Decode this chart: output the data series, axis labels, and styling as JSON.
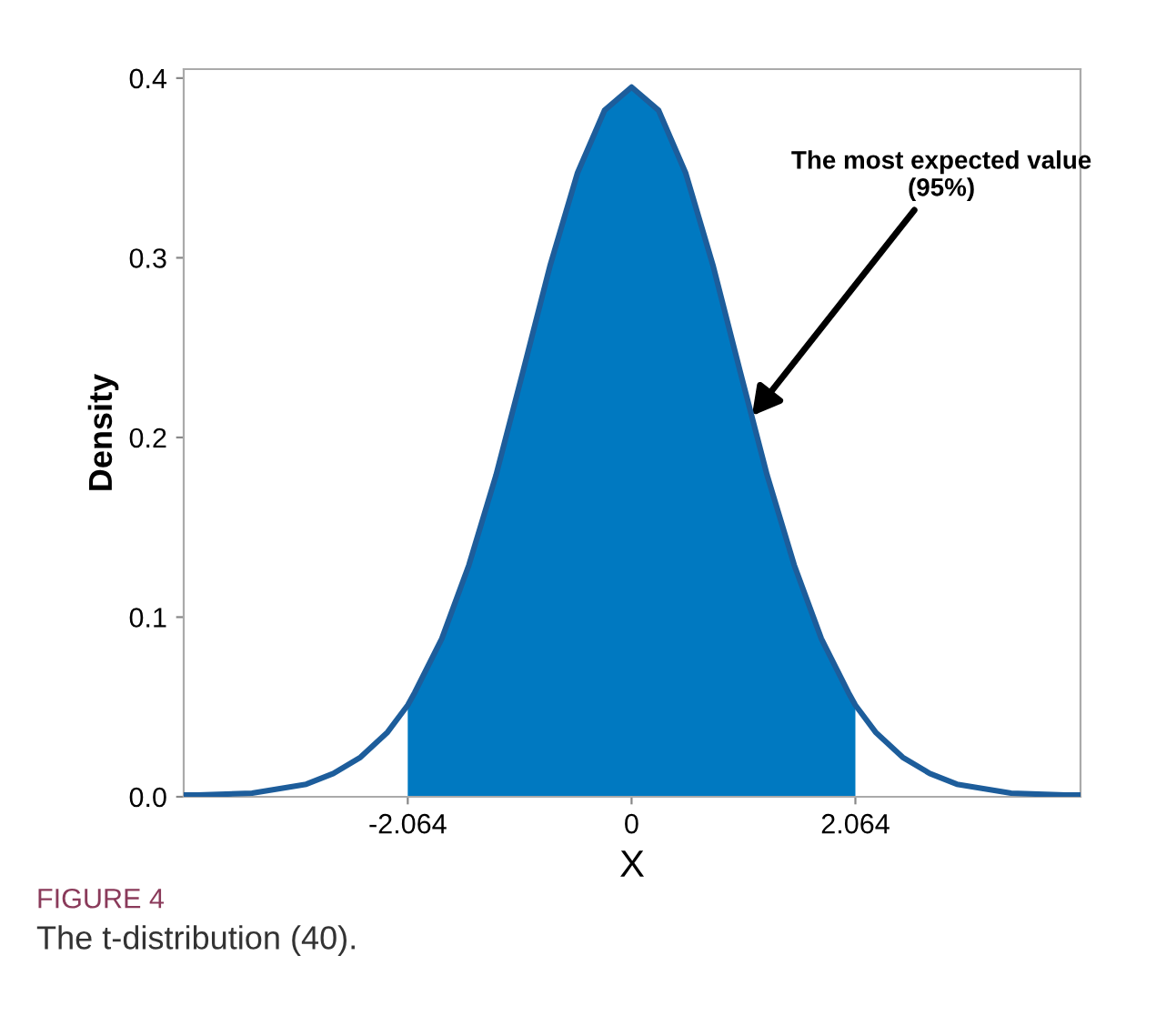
{
  "chart_data": {
    "type": "line",
    "xlabel": "X",
    "ylabel": "Density",
    "xlim": [
      -4.13,
      4.14
    ],
    "ylim": [
      0,
      0.405
    ],
    "xticks": [
      -2.064,
      0,
      2.064
    ],
    "yticks": [
      {
        "value": 0,
        "label": "0.0"
      },
      0.1,
      0.2,
      0.3,
      0.4
    ],
    "grid": false,
    "legend": false,
    "marker": "none",
    "line_style": "solid",
    "series": [
      {
        "type": "area",
        "color": "#0079c1",
        "x": [
          -2.064,
          -2.0,
          -1.75,
          -1.5,
          -1.25,
          -1.0,
          -0.75,
          -0.5,
          -0.25,
          0,
          0.25,
          0.5,
          0.75,
          1.0,
          1.25,
          1.5,
          1.75,
          2.0,
          2.064
        ],
        "values": [
          0.051,
          0.058,
          0.088,
          0.129,
          0.179,
          0.237,
          0.296,
          0.347,
          0.382,
          0.395,
          0.382,
          0.347,
          0.296,
          0.237,
          0.179,
          0.129,
          0.088,
          0.058,
          0.051
        ]
      },
      {
        "color": "#1d5d9b",
        "x": [
          -4.13,
          -4.0,
          -3.5,
          -3.0,
          -2.75,
          -2.5,
          -2.25,
          -2.064,
          -2.0,
          -1.75,
          -1.5,
          -1.25,
          -1.0,
          -0.75,
          -0.5,
          -0.25,
          0,
          0.25,
          0.5,
          0.75,
          1.0,
          1.25,
          1.5,
          1.75,
          2.0,
          2.064,
          2.25,
          2.5,
          2.75,
          3.0,
          3.5,
          4.0,
          4.14
        ],
        "values": [
          0.001,
          0.001,
          0.002,
          0.007,
          0.013,
          0.022,
          0.036,
          0.051,
          0.058,
          0.088,
          0.129,
          0.179,
          0.237,
          0.296,
          0.347,
          0.382,
          0.395,
          0.382,
          0.347,
          0.296,
          0.237,
          0.179,
          0.129,
          0.088,
          0.058,
          0.051,
          0.036,
          0.022,
          0.013,
          0.007,
          0.002,
          0.001,
          0.001
        ]
      }
    ],
    "annotations": [
      {
        "text": "The most expected value\n(95%)",
        "x": 1.11,
        "y": 0.212
      },
      "FIGURE 4",
      "The t-distribution (40)."
    ]
  }
}
